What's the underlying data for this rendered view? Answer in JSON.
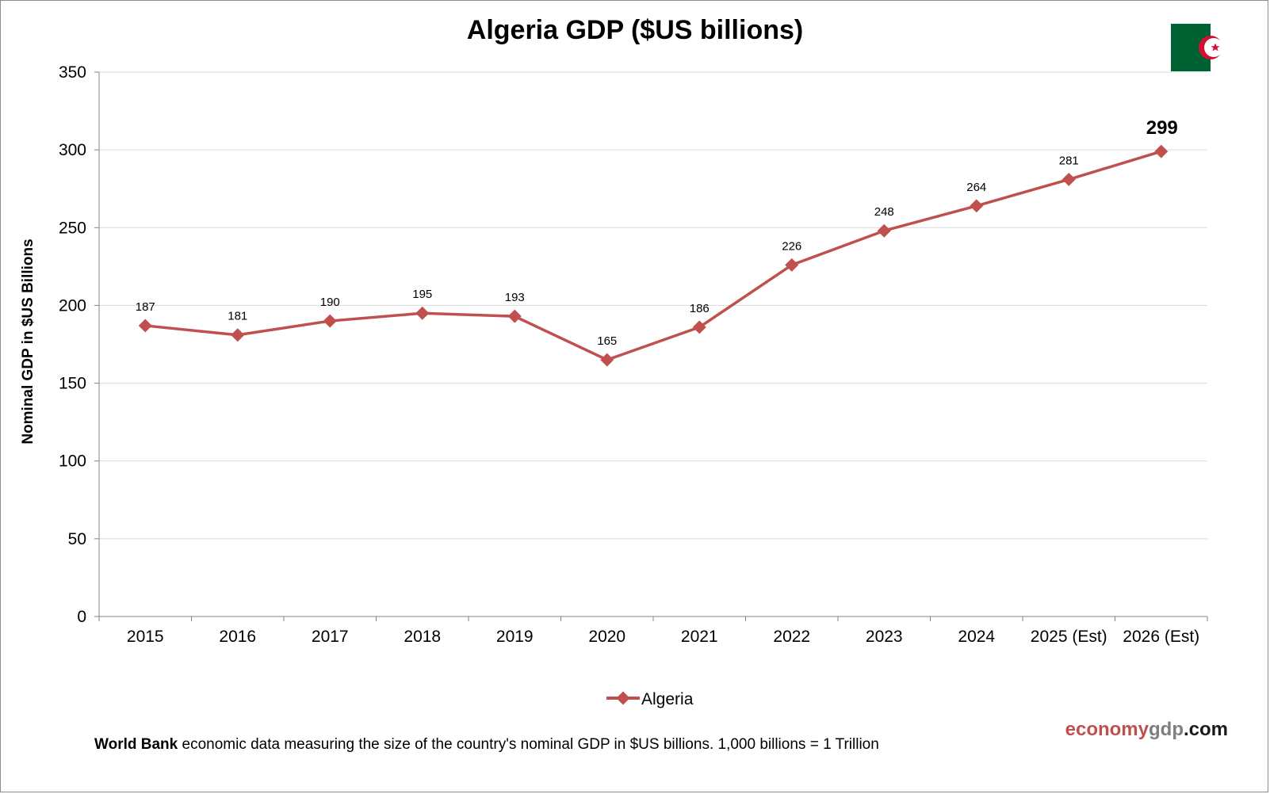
{
  "colors": {
    "series": "#c0504d",
    "grid": "#d9d9d9",
    "axis": "#868686",
    "flag_green": "#006233",
    "flag_white": "#ffffff",
    "flag_red": "#d21034",
    "brand_red": "#c0504d",
    "brand_gray": "#7f7f7f",
    "brand_black": "#1a1a1a"
  },
  "flag": {
    "icon": "algeria-flag-icon"
  },
  "chart_data": {
    "type": "line",
    "title": "Algeria GDP ($US billions)",
    "xlabel": "",
    "ylabel": "Nominal GDP in $US Billions",
    "ylim": [
      0,
      350
    ],
    "yticks": [
      0,
      50,
      100,
      150,
      200,
      250,
      300,
      350
    ],
    "categories": [
      "2015",
      "2016",
      "2017",
      "2018",
      "2019",
      "2020",
      "2021",
      "2022",
      "2023",
      "2024",
      "2025 (Est)",
      "2026 (Est)"
    ],
    "series": [
      {
        "name": "Algeria",
        "values": [
          187,
          181,
          190,
          195,
          193,
          165,
          186,
          226,
          248,
          264,
          281,
          299
        ],
        "labels": [
          "187",
          "181",
          "190",
          "195",
          "193",
          "165",
          "186",
          "226",
          "248",
          "264",
          "281",
          "299"
        ],
        "marker": "diamond"
      }
    ],
    "grid": true,
    "legend": "bottom-center"
  },
  "footnote": {
    "bold": "World Bank",
    "text": " economic data  measuring  the size of the country's nominal  GDP in $US billions.  1,000 billions = 1 Trillion"
  },
  "brand": {
    "part1": "economy",
    "part2": "gdp",
    "part3": ".com"
  }
}
